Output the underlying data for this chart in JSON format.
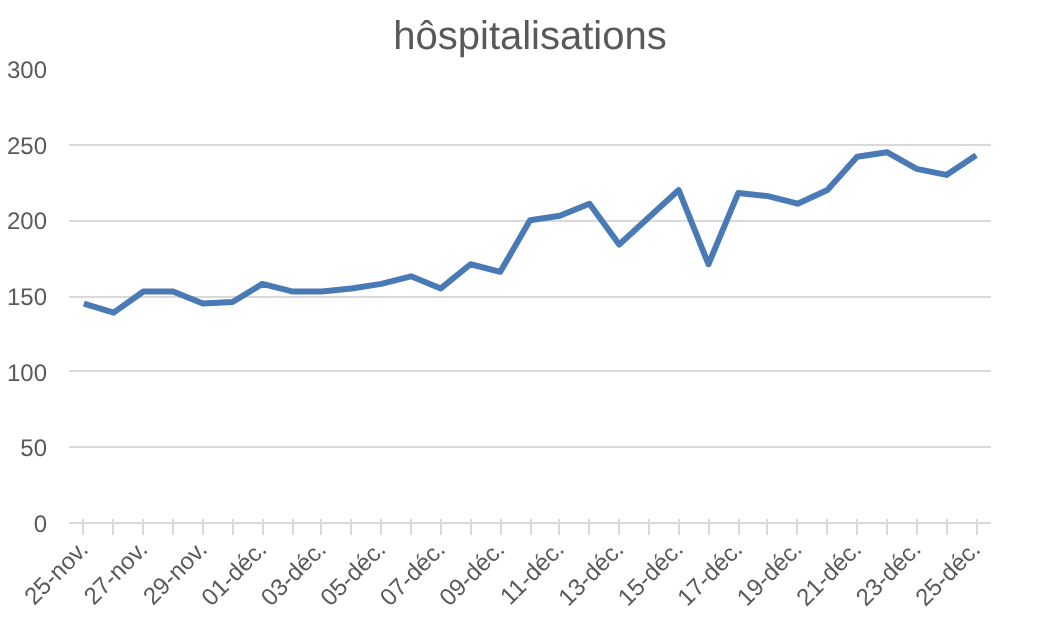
{
  "chart_data": {
    "type": "line",
    "title": "hôspitalisations",
    "categories": [
      "25-nov.",
      null,
      "27-nov.",
      null,
      "29-nov.",
      null,
      "01-déc.",
      null,
      "03-déc.",
      null,
      "05-déc.",
      null,
      "07-déc.",
      null,
      "09-déc.",
      null,
      "11-déc.",
      null,
      "13-déc.",
      null,
      "15-déc.",
      null,
      "17-déc.",
      null,
      "19-déc.",
      null,
      "21-déc.",
      null,
      "23-déc.",
      null,
      "25-déc."
    ],
    "series": [
      {
        "color": "#4a7ab5",
        "values": [
          145,
          139,
          153,
          153,
          145,
          146,
          158,
          153,
          153,
          155,
          158,
          163,
          155,
          171,
          166,
          200,
          203,
          211,
          184,
          202,
          220,
          171,
          218,
          216,
          211,
          220,
          242,
          245,
          234,
          230,
          243
        ]
      }
    ],
    "ylim": [
      0,
      300
    ],
    "yticks": [
      0,
      50,
      100,
      150,
      200,
      250,
      300
    ],
    "grid": "y",
    "marker": "none",
    "line_style": "solid"
  }
}
